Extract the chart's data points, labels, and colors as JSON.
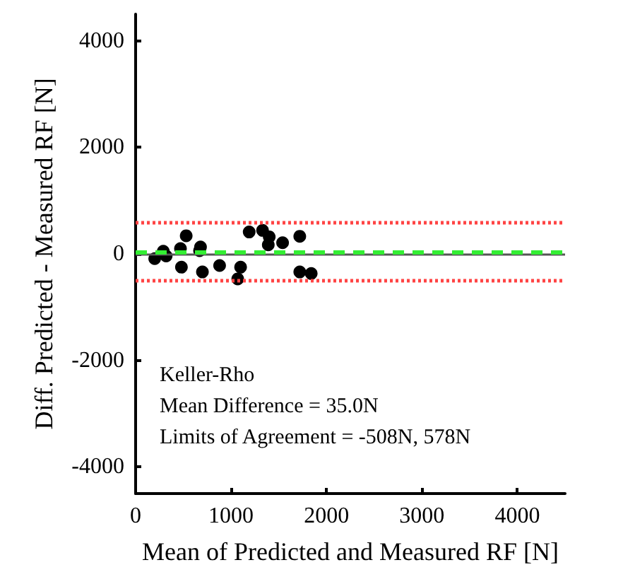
{
  "chart_data": {
    "type": "scatter",
    "xlabel": "Mean of Predicted and Measured RF [N]",
    "ylabel": "Diff. Predicted - Measured RF [N]",
    "x": [
      200,
      290,
      320,
      470,
      530,
      480,
      680,
      670,
      700,
      880,
      1100,
      1070,
      1190,
      1330,
      1400,
      1390,
      1540,
      1720,
      1720,
      1840
    ],
    "series": [
      {
        "color": "#000000",
        "values": [
          -90,
          50,
          -40,
          100,
          340,
          -250,
          130,
          60,
          -340,
          -220,
          -250,
          -470,
          410,
          440,
          320,
          170,
          210,
          330,
          -340,
          -370
        ]
      }
    ],
    "xlim": [
      0,
      4500
    ],
    "xticks": [
      0,
      1000,
      2000,
      3000,
      4000
    ],
    "ylim": [
      -4500,
      4500
    ],
    "yticks": [
      -4000,
      -2000,
      0,
      2000,
      4000
    ],
    "ref_lines": [
      {
        "axis": "y",
        "value": 0,
        "color": "#555555",
        "line_style": "solid"
      },
      {
        "axis": "y",
        "value": 35,
        "color": "#33ee33",
        "line_style": "dashed"
      },
      {
        "axis": "y",
        "value": 578,
        "color": "#ff4444",
        "line_style": "dotted"
      },
      {
        "axis": "y",
        "value": -508,
        "color": "#ff4444",
        "line_style": "dotted"
      }
    ],
    "annotations": [
      "Keller-Rho",
      "Mean Difference = 35.0N",
      "Limits of Agreement = -508N, 578N"
    ],
    "marker": "circle",
    "grid": false
  }
}
